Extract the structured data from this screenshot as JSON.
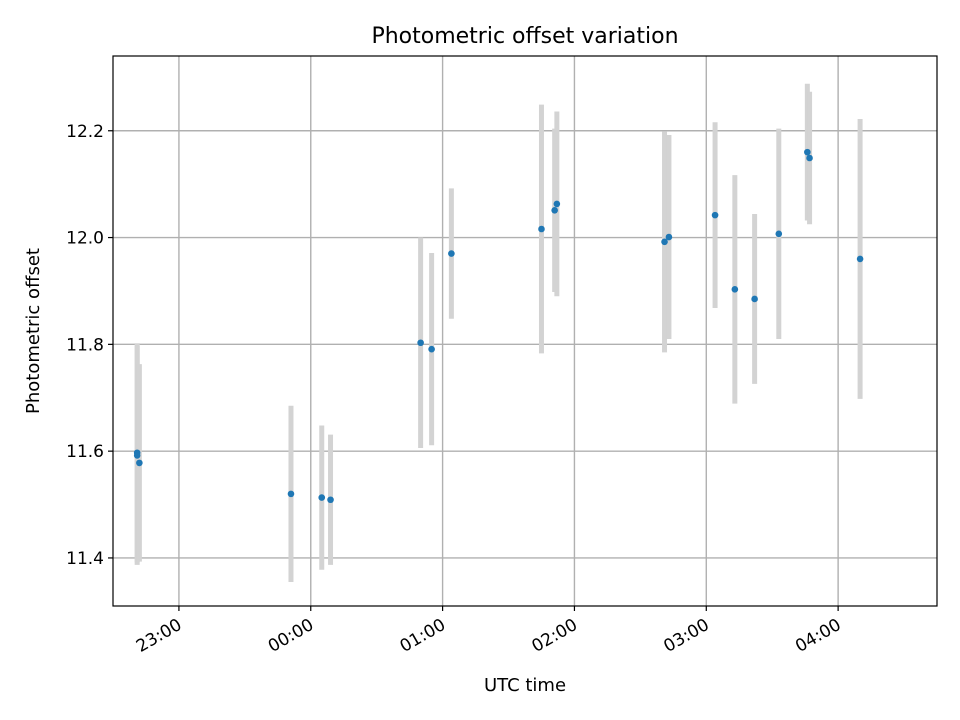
{
  "chart_data": {
    "type": "scatter",
    "title": "Photometric offset variation",
    "xlabel": "UTC time",
    "ylabel": "Photometric offset",
    "x_unit": "UTC clock time (H:MM, 23:xx = previous day)",
    "xlim": [
      "22:30",
      "04:45"
    ],
    "ylim": [
      11.31,
      12.34
    ],
    "x_ticks": [
      "23:00",
      "00:00",
      "01:00",
      "02:00",
      "03:00",
      "04:00"
    ],
    "y_ticks": [
      11.4,
      11.6,
      11.8,
      12.0,
      12.2
    ],
    "y_tick_labels": [
      "11.4",
      "11.6",
      "11.8",
      "12.0",
      "12.2"
    ],
    "grid": true,
    "colors": {
      "point": "#1f77b4",
      "errorbar": "#d3d3d3",
      "grid": "#b0b0b0"
    },
    "points": [
      {
        "x": "22:41",
        "y": 11.597,
        "yerr": 0.205
      },
      {
        "x": "22:41",
        "y": 11.592,
        "yerr": 0.205
      },
      {
        "x": "22:42",
        "y": 11.578,
        "yerr": 0.185
      },
      {
        "x": "23:51",
        "y": 11.52,
        "yerr": 0.165
      },
      {
        "x": "00:05",
        "y": 11.513,
        "yerr": 0.135
      },
      {
        "x": "00:09",
        "y": 11.509,
        "yerr": 0.122
      },
      {
        "x": "00:50",
        "y": 11.803,
        "yerr": 0.197
      },
      {
        "x": "00:55",
        "y": 11.791,
        "yerr": 0.18
      },
      {
        "x": "01:04",
        "y": 11.97,
        "yerr": 0.122
      },
      {
        "x": "01:45",
        "y": 12.016,
        "yerr": 0.233
      },
      {
        "x": "01:51",
        "y": 12.051,
        "yerr": 0.153
      },
      {
        "x": "01:52",
        "y": 12.063,
        "yerr": 0.173
      },
      {
        "x": "02:41",
        "y": 11.992,
        "yerr": 0.207
      },
      {
        "x": "02:43",
        "y": 12.001,
        "yerr": 0.191
      },
      {
        "x": "03:04",
        "y": 12.042,
        "yerr": 0.174
      },
      {
        "x": "03:13",
        "y": 11.903,
        "yerr": 0.214
      },
      {
        "x": "03:22",
        "y": 11.885,
        "yerr": 0.159
      },
      {
        "x": "03:33",
        "y": 12.007,
        "yerr": 0.197
      },
      {
        "x": "03:46",
        "y": 12.16,
        "yerr": 0.128
      },
      {
        "x": "03:47",
        "y": 12.149,
        "yerr": 0.124
      },
      {
        "x": "04:10",
        "y": 11.96,
        "yerr": 0.262
      }
    ]
  }
}
